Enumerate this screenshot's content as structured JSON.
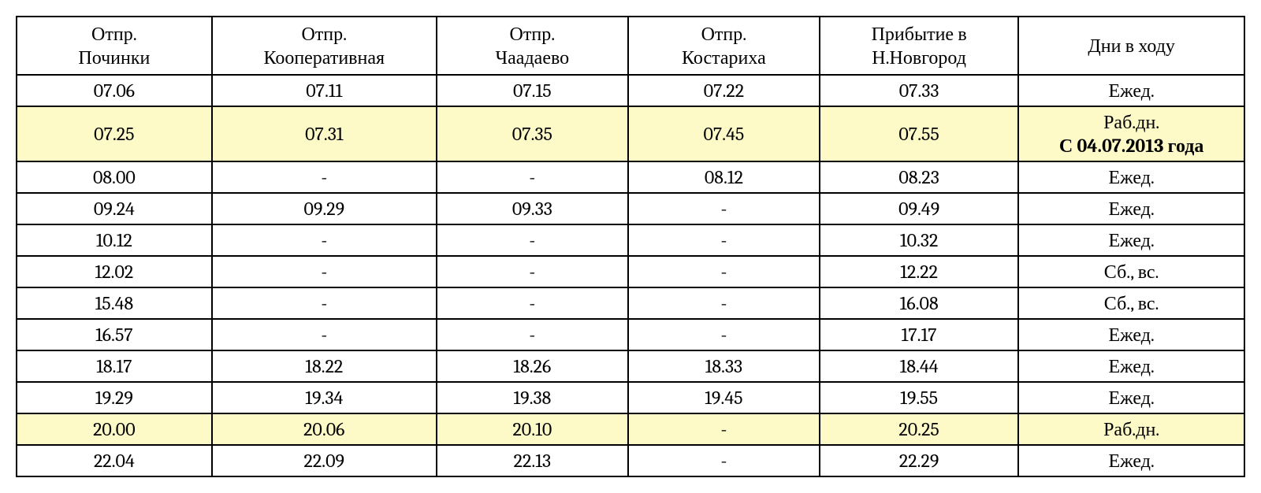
{
  "table": {
    "type": "table",
    "background_color": "#ffffff",
    "border_color": "#000000",
    "highlight_color": "#fdfac8",
    "font_family": "Cambria, Georgia, serif",
    "header_fontsize": 24,
    "cell_fontsize": 24,
    "columns": [
      {
        "line1": "Отпр.",
        "line2": "Починки"
      },
      {
        "line1": "Отпр.",
        "line2": "Кооперативная"
      },
      {
        "line1": "Отпр.",
        "line2": "Чаадаево"
      },
      {
        "line1": "Отпр.",
        "line2": "Костариха"
      },
      {
        "line1": "Прибытие в",
        "line2": "Н.Новгород"
      },
      {
        "line1": "Дни в ходу",
        "line2": ""
      }
    ],
    "rows": [
      {
        "height": "mid",
        "highlight": false,
        "cells": [
          "07.06",
          "07.11",
          "07.15",
          "07.22",
          "07.33",
          "Ежед."
        ],
        "note_sub": ""
      },
      {
        "height": "tall",
        "highlight": true,
        "cells": [
          "07.25",
          "07.31",
          "07.35",
          "07.45",
          "07.55",
          "Раб.дн."
        ],
        "note_sub": "С 04.07.2013 года"
      },
      {
        "height": "mid",
        "highlight": false,
        "cells": [
          "08.00",
          "-",
          "-",
          "08.12",
          "08.23",
          "Ежед."
        ],
        "note_sub": ""
      },
      {
        "height": "short",
        "highlight": false,
        "cells": [
          "09.24",
          "09.29",
          "09.33",
          "-",
          "09.49",
          "Ежед."
        ],
        "note_sub": ""
      },
      {
        "height": "short",
        "highlight": false,
        "cells": [
          "10.12",
          "-",
          "-",
          "-",
          "10.32",
          "Ежед."
        ],
        "note_sub": ""
      },
      {
        "height": "short",
        "highlight": false,
        "cells": [
          "12.02",
          "-",
          "-",
          "-",
          "12.22",
          "Сб., вс."
        ],
        "note_sub": ""
      },
      {
        "height": "short",
        "highlight": false,
        "cells": [
          "15.48",
          "-",
          "-",
          "-",
          "16.08",
          "Сб., вс."
        ],
        "note_sub": ""
      },
      {
        "height": "short",
        "highlight": false,
        "cells": [
          "16.57",
          "-",
          "-",
          "-",
          "17.17",
          "Ежед."
        ],
        "note_sub": ""
      },
      {
        "height": "short",
        "highlight": false,
        "cells": [
          "18.17",
          "18.22",
          "18.26",
          "18.33",
          "18.44",
          "Ежед."
        ],
        "note_sub": ""
      },
      {
        "height": "short",
        "highlight": false,
        "cells": [
          "19.29",
          "19.34",
          "19.38",
          "19.45",
          "19.55",
          "Ежед."
        ],
        "note_sub": ""
      },
      {
        "height": "short",
        "highlight": true,
        "cells": [
          "20.00",
          "20.06",
          "20.10",
          "-",
          "20.25",
          "Раб.дн."
        ],
        "note_sub": ""
      },
      {
        "height": "short",
        "highlight": false,
        "cells": [
          "22.04",
          "22.09",
          "22.13",
          "-",
          "22.29",
          "Ежед."
        ],
        "note_sub": ""
      }
    ]
  }
}
